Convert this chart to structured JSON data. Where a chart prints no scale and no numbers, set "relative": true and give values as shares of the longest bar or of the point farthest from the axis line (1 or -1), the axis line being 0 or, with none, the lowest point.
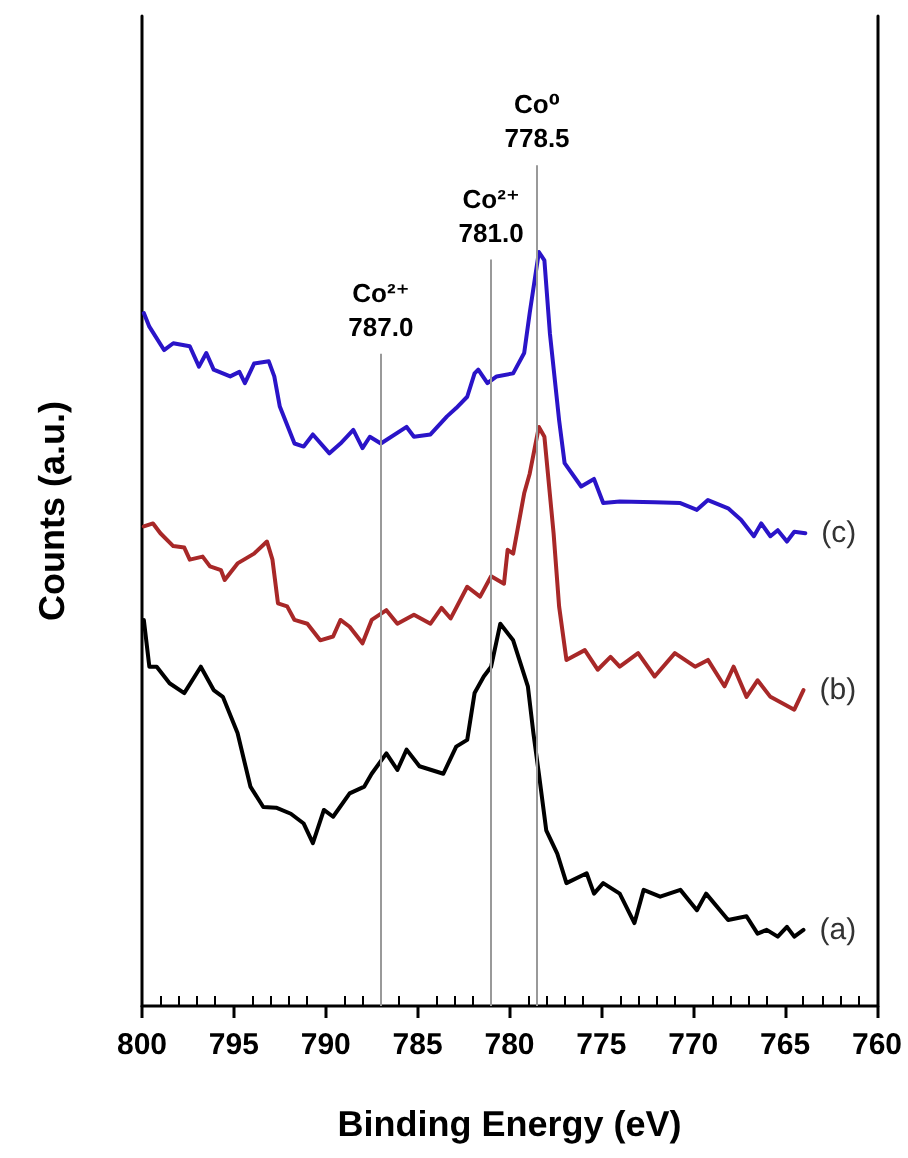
{
  "chart_data": {
    "type": "line",
    "relative": true,
    "xlabel": "Binding Energy (eV)",
    "ylabel": "Counts (a.u.)",
    "xlim": [
      800,
      760
    ],
    "xticks": [
      800,
      {
        "value": 799,
        "label": null
      },
      {
        "value": 798,
        "label": null
      },
      {
        "value": 797,
        "label": null
      },
      {
        "value": 796,
        "label": null
      },
      795,
      {
        "value": 794,
        "label": null
      },
      {
        "value": 793,
        "label": null
      },
      {
        "value": 792,
        "label": null
      },
      {
        "value": 791,
        "label": null
      },
      790,
      {
        "value": 789,
        "label": null
      },
      {
        "value": 788,
        "label": null
      },
      {
        "value": 787,
        "label": null
      },
      {
        "value": 786,
        "label": null
      },
      785,
      {
        "value": 784,
        "label": null
      },
      {
        "value": 783,
        "label": null
      },
      {
        "value": 782,
        "label": null
      },
      {
        "value": 781,
        "label": null
      },
      780,
      {
        "value": 779,
        "label": null
      },
      {
        "value": 778,
        "label": null
      },
      {
        "value": 777,
        "label": null
      },
      {
        "value": 776,
        "label": null
      },
      775,
      {
        "value": 774,
        "label": null
      },
      {
        "value": 773,
        "label": null
      },
      {
        "value": 772,
        "label": null
      },
      {
        "value": 771,
        "label": null
      },
      770,
      {
        "value": 769,
        "label": null
      },
      {
        "value": 768,
        "label": null
      },
      {
        "value": 767,
        "label": null
      },
      {
        "value": 766,
        "label": null
      },
      765,
      {
        "value": 764,
        "label": null
      },
      {
        "value": 763,
        "label": null
      },
      {
        "value": 762,
        "label": null
      },
      {
        "value": 761,
        "label": null
      },
      760
    ],
    "grid": false,
    "legend": false,
    "marker": "none",
    "line_style": "solid",
    "series": [
      {
        "name": "(a)",
        "color": "#000000",
        "x": [
          799.9,
          799.6,
          799.2,
          798.5,
          797.7,
          796.8,
          796.1,
          795.6,
          794.8,
          794.1,
          793.4,
          792.7,
          791.9,
          791.2,
          790.7,
          790.1,
          789.6,
          788.7,
          787.9,
          787.5,
          786.7,
          786.1,
          785.6,
          784.9,
          783.6,
          782.9,
          782.3,
          781.9,
          781.4,
          781.0,
          780.5,
          779.8,
          779.0,
          778.7,
          778.4,
          778.0,
          777.4,
          776.9,
          775.8,
          775.4,
          774.9,
          774.0,
          773.2,
          772.7,
          771.8,
          770.7,
          769.8,
          769.3,
          768.1,
          767.1,
          766.5,
          766.0,
          765.4,
          764.9,
          764.5,
          764.0
        ],
        "values": [
          0.512,
          0.45,
          0.45,
          0.428,
          0.415,
          0.45,
          0.419,
          0.41,
          0.362,
          0.291,
          0.264,
          0.263,
          0.255,
          0.242,
          0.216,
          0.26,
          0.251,
          0.282,
          0.291,
          0.308,
          0.335,
          0.313,
          0.34,
          0.318,
          0.308,
          0.344,
          0.353,
          0.415,
          0.437,
          0.45,
          0.507,
          0.485,
          0.424,
          0.362,
          0.308,
          0.233,
          0.202,
          0.163,
          0.176,
          0.149,
          0.163,
          0.149,
          0.11,
          0.154,
          0.145,
          0.154,
          0.127,
          0.149,
          0.114,
          0.119,
          0.096,
          0.101,
          0.092,
          0.105,
          0.092,
          0.101
        ]
      },
      {
        "name": "(b)",
        "color": "#a82828",
        "x": [
          799.9,
          799.4,
          799.0,
          798.3,
          797.7,
          797.4,
          796.7,
          796.3,
          795.7,
          795.5,
          794.8,
          793.9,
          793.2,
          792.9,
          792.6,
          792.1,
          791.7,
          791.0,
          790.3,
          789.6,
          789.2,
          788.7,
          788.0,
          787.5,
          786.7,
          786.1,
          785.2,
          784.3,
          783.7,
          783.2,
          782.3,
          781.6,
          781.0,
          780.3,
          780.1,
          779.8,
          779.2,
          778.9,
          778.4,
          778.1,
          777.6,
          777.3,
          776.9,
          775.9,
          775.2,
          774.5,
          774.0,
          773.0,
          772.1,
          771.0,
          769.9,
          769.2,
          768.3,
          767.8,
          767.1,
          766.5,
          765.8,
          764.5,
          764.0
        ],
        "values": [
          0.636,
          0.64,
          0.627,
          0.61,
          0.608,
          0.592,
          0.596,
          0.583,
          0.578,
          0.565,
          0.587,
          0.6,
          0.616,
          0.592,
          0.534,
          0.53,
          0.512,
          0.507,
          0.485,
          0.49,
          0.512,
          0.503,
          0.481,
          0.512,
          0.525,
          0.507,
          0.519,
          0.507,
          0.528,
          0.514,
          0.556,
          0.543,
          0.57,
          0.56,
          0.605,
          0.6,
          0.68,
          0.706,
          0.768,
          0.755,
          0.627,
          0.53,
          0.459,
          0.472,
          0.446,
          0.463,
          0.45,
          0.468,
          0.437,
          0.468,
          0.45,
          0.459,
          0.424,
          0.45,
          0.41,
          0.432,
          0.41,
          0.393,
          0.419
        ]
      },
      {
        "name": "(c)",
        "color": "#2a14c8",
        "x": [
          799.9,
          799.6,
          798.8,
          798.3,
          797.4,
          796.9,
          796.5,
          796.1,
          795.2,
          794.7,
          794.4,
          793.9,
          793.1,
          792.8,
          792.5,
          791.7,
          791.2,
          790.7,
          789.8,
          789.2,
          788.5,
          788.0,
          787.6,
          787.0,
          785.6,
          785.2,
          784.3,
          783.4,
          782.9,
          782.3,
          781.9,
          781.7,
          781.2,
          780.7,
          779.8,
          779.2,
          778.9,
          778.4,
          778.1,
          777.8,
          777.3,
          777.0,
          776.1,
          775.4,
          774.9,
          774.0,
          772.1,
          770.7,
          769.8,
          769.2,
          768.1,
          767.4,
          766.7,
          766.3,
          765.8,
          765.4,
          764.9,
          764.5,
          763.9
        ],
        "values": [
          0.919,
          0.901,
          0.87,
          0.879,
          0.875,
          0.848,
          0.866,
          0.844,
          0.835,
          0.841,
          0.826,
          0.852,
          0.855,
          0.835,
          0.795,
          0.746,
          0.742,
          0.758,
          0.733,
          0.746,
          0.764,
          0.74,
          0.755,
          0.746,
          0.768,
          0.755,
          0.758,
          0.782,
          0.793,
          0.808,
          0.839,
          0.844,
          0.826,
          0.835,
          0.839,
          0.866,
          0.919,
          1.0,
          0.989,
          0.892,
          0.777,
          0.72,
          0.689,
          0.699,
          0.667,
          0.669,
          0.668,
          0.667,
          0.658,
          0.671,
          0.66,
          0.645,
          0.623,
          0.64,
          0.623,
          0.631,
          0.616,
          0.629,
          0.627
        ]
      }
    ],
    "ref_lines": [
      {
        "axis": "x",
        "value": 787.0,
        "label": "Co²⁺\n787.0",
        "color": "#999999"
      },
      {
        "axis": "x",
        "value": 781.0,
        "label": "Co²⁺\n781.0",
        "color": "#999999"
      },
      {
        "axis": "x",
        "value": 778.5,
        "label": "Co⁰\n778.5",
        "color": "#999999"
      }
    ]
  }
}
